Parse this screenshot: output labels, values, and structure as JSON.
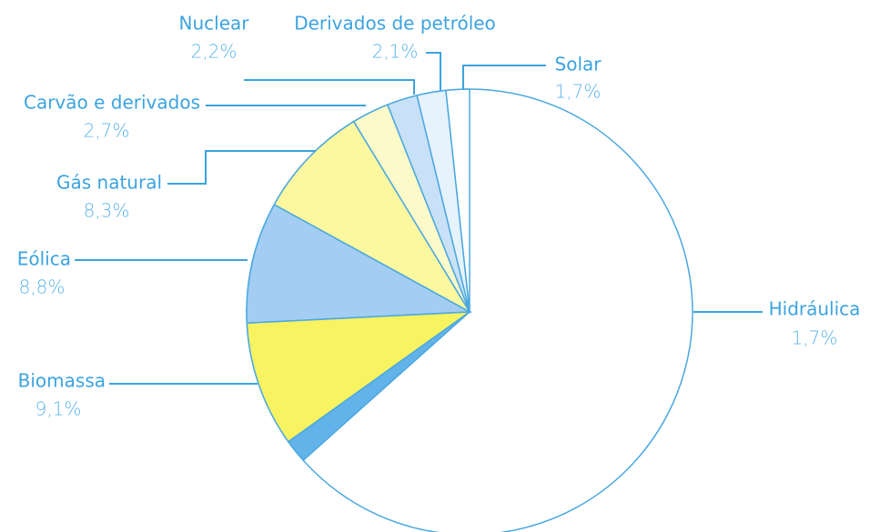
{
  "chart_data": {
    "type": "pie",
    "categories": [
      "Hidráulica",
      "Biomassa",
      "Eólica",
      "Gás natural",
      "Carvão e derivados",
      "Nuclear",
      "Derivados de petróleo",
      "Solar"
    ],
    "values": [
      1.7,
      9.1,
      8.8,
      8.3,
      2.7,
      2.2,
      2.1,
      1.7
    ],
    "value_labels": [
      "1,7%",
      "9,1%",
      "8,8%",
      "8,3%",
      "2,7%",
      "2,2%",
      "2,1%",
      "1,7%"
    ],
    "colors": [
      "#62b3ea",
      "#f7f361",
      "#a3cdf2",
      "#fbf8a0",
      "#fcfac8",
      "#c9e1f7",
      "#e6f2fc",
      "#ffffff"
    ]
  }
}
